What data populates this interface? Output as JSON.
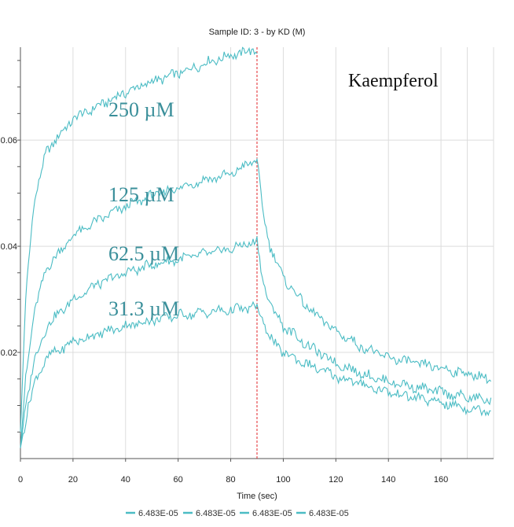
{
  "chart_data": {
    "type": "line",
    "title": "Sample ID: 3 - by KD (M)",
    "xlabel": "Time (sec)",
    "ylabel": "",
    "xlim": [
      0,
      180
    ],
    "ylim": [
      0,
      0.0775
    ],
    "x_ticks": [
      0,
      20,
      40,
      60,
      80,
      100,
      120,
      140,
      160
    ],
    "x_tick_labels": [
      "0",
      "20",
      "40",
      "60",
      "80",
      "100",
      "120",
      "140",
      "160"
    ],
    "y_ticks": [
      0.02,
      0.04,
      0.06
    ],
    "y_tick_labels": [
      "0.02",
      "0.04",
      "0.06"
    ],
    "grid": true,
    "marker_line": {
      "x": 90,
      "color": "#e0262a"
    },
    "compound_label": "Kaempferol",
    "series_color": "#4bbcc4",
    "label_color": "#3a8f9a",
    "series": [
      {
        "name": "6.483E-05",
        "label": "250 µM",
        "points": [
          [
            0,
            0.005
          ],
          [
            2,
            0.03
          ],
          [
            5,
            0.048
          ],
          [
            10,
            0.058
          ],
          [
            20,
            0.064
          ],
          [
            30,
            0.0665
          ],
          [
            40,
            0.069
          ],
          [
            50,
            0.071
          ],
          [
            60,
            0.0725
          ],
          [
            70,
            0.0745
          ],
          [
            80,
            0.076
          ],
          [
            90,
            0.077
          ]
        ]
      },
      {
        "name": "6.483E-05",
        "label": "125 µM",
        "points": [
          [
            0,
            0.002
          ],
          [
            2,
            0.015
          ],
          [
            5,
            0.027
          ],
          [
            10,
            0.036
          ],
          [
            20,
            0.042
          ],
          [
            30,
            0.045
          ],
          [
            40,
            0.0475
          ],
          [
            50,
            0.0495
          ],
          [
            60,
            0.051
          ],
          [
            70,
            0.0525
          ],
          [
            80,
            0.0535
          ],
          [
            90,
            0.0565
          ],
          [
            92,
            0.047
          ],
          [
            95,
            0.04
          ],
          [
            100,
            0.034
          ],
          [
            110,
            0.028
          ],
          [
            120,
            0.024
          ],
          [
            130,
            0.021
          ],
          [
            140,
            0.019
          ],
          [
            150,
            0.018
          ],
          [
            160,
            0.017
          ],
          [
            170,
            0.016
          ],
          [
            179,
            0.015
          ]
        ]
      },
      {
        "name": "6.483E-05",
        "label": "62.5 µM",
        "points": [
          [
            0,
            0.002
          ],
          [
            2,
            0.01
          ],
          [
            5,
            0.018
          ],
          [
            10,
            0.025
          ],
          [
            20,
            0.03
          ],
          [
            30,
            0.033
          ],
          [
            40,
            0.035
          ],
          [
            50,
            0.0365
          ],
          [
            60,
            0.0375
          ],
          [
            70,
            0.0385
          ],
          [
            80,
            0.0395
          ],
          [
            90,
            0.041
          ],
          [
            92,
            0.034
          ],
          [
            95,
            0.029
          ],
          [
            100,
            0.025
          ],
          [
            110,
            0.021
          ],
          [
            120,
            0.018
          ],
          [
            130,
            0.016
          ],
          [
            140,
            0.0145
          ],
          [
            150,
            0.0135
          ],
          [
            160,
            0.0125
          ],
          [
            170,
            0.0115
          ],
          [
            179,
            0.011
          ]
        ]
      },
      {
        "name": "6.483E-05",
        "label": "31.3 µM",
        "points": [
          [
            0,
            0.002
          ],
          [
            3,
            0.01
          ],
          [
            6,
            0.015
          ],
          [
            10,
            0.019
          ],
          [
            20,
            0.022
          ],
          [
            30,
            0.0235
          ],
          [
            40,
            0.025
          ],
          [
            50,
            0.026
          ],
          [
            60,
            0.027
          ],
          [
            70,
            0.0275
          ],
          [
            80,
            0.028
          ],
          [
            90,
            0.0285
          ],
          [
            93,
            0.025
          ],
          [
            96,
            0.022
          ],
          [
            100,
            0.02
          ],
          [
            110,
            0.0175
          ],
          [
            120,
            0.0155
          ],
          [
            130,
            0.014
          ],
          [
            140,
            0.0125
          ],
          [
            150,
            0.0115
          ],
          [
            160,
            0.0105
          ],
          [
            170,
            0.0095
          ],
          [
            179,
            0.009
          ]
        ]
      }
    ]
  }
}
